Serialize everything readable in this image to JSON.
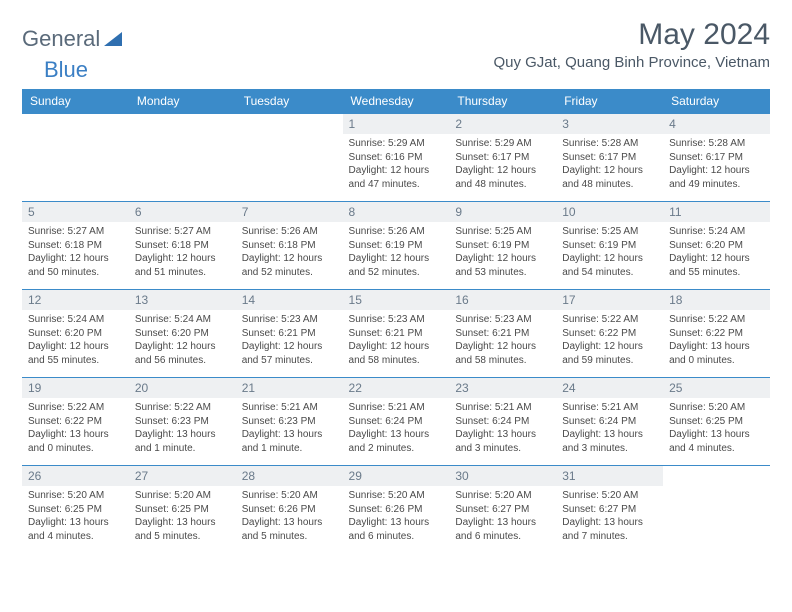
{
  "logo": {
    "text1": "General",
    "text2": "Blue"
  },
  "title": "May 2024",
  "location": "Quy GJat, Quang Binh Province, Vietnam",
  "colors": {
    "header_bg": "#3b8bc9",
    "header_text": "#ffffff",
    "border": "#3b8bc9",
    "daynum_bg": "#eef0f2"
  },
  "weekdays": [
    "Sunday",
    "Monday",
    "Tuesday",
    "Wednesday",
    "Thursday",
    "Friday",
    "Saturday"
  ],
  "weeks": [
    [
      null,
      null,
      null,
      {
        "d": "1",
        "sr": "Sunrise: 5:29 AM",
        "ss": "Sunset: 6:16 PM",
        "dl": "Daylight: 12 hours and 47 minutes."
      },
      {
        "d": "2",
        "sr": "Sunrise: 5:29 AM",
        "ss": "Sunset: 6:17 PM",
        "dl": "Daylight: 12 hours and 48 minutes."
      },
      {
        "d": "3",
        "sr": "Sunrise: 5:28 AM",
        "ss": "Sunset: 6:17 PM",
        "dl": "Daylight: 12 hours and 48 minutes."
      },
      {
        "d": "4",
        "sr": "Sunrise: 5:28 AM",
        "ss": "Sunset: 6:17 PM",
        "dl": "Daylight: 12 hours and 49 minutes."
      }
    ],
    [
      {
        "d": "5",
        "sr": "Sunrise: 5:27 AM",
        "ss": "Sunset: 6:18 PM",
        "dl": "Daylight: 12 hours and 50 minutes."
      },
      {
        "d": "6",
        "sr": "Sunrise: 5:27 AM",
        "ss": "Sunset: 6:18 PM",
        "dl": "Daylight: 12 hours and 51 minutes."
      },
      {
        "d": "7",
        "sr": "Sunrise: 5:26 AM",
        "ss": "Sunset: 6:18 PM",
        "dl": "Daylight: 12 hours and 52 minutes."
      },
      {
        "d": "8",
        "sr": "Sunrise: 5:26 AM",
        "ss": "Sunset: 6:19 PM",
        "dl": "Daylight: 12 hours and 52 minutes."
      },
      {
        "d": "9",
        "sr": "Sunrise: 5:25 AM",
        "ss": "Sunset: 6:19 PM",
        "dl": "Daylight: 12 hours and 53 minutes."
      },
      {
        "d": "10",
        "sr": "Sunrise: 5:25 AM",
        "ss": "Sunset: 6:19 PM",
        "dl": "Daylight: 12 hours and 54 minutes."
      },
      {
        "d": "11",
        "sr": "Sunrise: 5:24 AM",
        "ss": "Sunset: 6:20 PM",
        "dl": "Daylight: 12 hours and 55 minutes."
      }
    ],
    [
      {
        "d": "12",
        "sr": "Sunrise: 5:24 AM",
        "ss": "Sunset: 6:20 PM",
        "dl": "Daylight: 12 hours and 55 minutes."
      },
      {
        "d": "13",
        "sr": "Sunrise: 5:24 AM",
        "ss": "Sunset: 6:20 PM",
        "dl": "Daylight: 12 hours and 56 minutes."
      },
      {
        "d": "14",
        "sr": "Sunrise: 5:23 AM",
        "ss": "Sunset: 6:21 PM",
        "dl": "Daylight: 12 hours and 57 minutes."
      },
      {
        "d": "15",
        "sr": "Sunrise: 5:23 AM",
        "ss": "Sunset: 6:21 PM",
        "dl": "Daylight: 12 hours and 58 minutes."
      },
      {
        "d": "16",
        "sr": "Sunrise: 5:23 AM",
        "ss": "Sunset: 6:21 PM",
        "dl": "Daylight: 12 hours and 58 minutes."
      },
      {
        "d": "17",
        "sr": "Sunrise: 5:22 AM",
        "ss": "Sunset: 6:22 PM",
        "dl": "Daylight: 12 hours and 59 minutes."
      },
      {
        "d": "18",
        "sr": "Sunrise: 5:22 AM",
        "ss": "Sunset: 6:22 PM",
        "dl": "Daylight: 13 hours and 0 minutes."
      }
    ],
    [
      {
        "d": "19",
        "sr": "Sunrise: 5:22 AM",
        "ss": "Sunset: 6:22 PM",
        "dl": "Daylight: 13 hours and 0 minutes."
      },
      {
        "d": "20",
        "sr": "Sunrise: 5:22 AM",
        "ss": "Sunset: 6:23 PM",
        "dl": "Daylight: 13 hours and 1 minute."
      },
      {
        "d": "21",
        "sr": "Sunrise: 5:21 AM",
        "ss": "Sunset: 6:23 PM",
        "dl": "Daylight: 13 hours and 1 minute."
      },
      {
        "d": "22",
        "sr": "Sunrise: 5:21 AM",
        "ss": "Sunset: 6:24 PM",
        "dl": "Daylight: 13 hours and 2 minutes."
      },
      {
        "d": "23",
        "sr": "Sunrise: 5:21 AM",
        "ss": "Sunset: 6:24 PM",
        "dl": "Daylight: 13 hours and 3 minutes."
      },
      {
        "d": "24",
        "sr": "Sunrise: 5:21 AM",
        "ss": "Sunset: 6:24 PM",
        "dl": "Daylight: 13 hours and 3 minutes."
      },
      {
        "d": "25",
        "sr": "Sunrise: 5:20 AM",
        "ss": "Sunset: 6:25 PM",
        "dl": "Daylight: 13 hours and 4 minutes."
      }
    ],
    [
      {
        "d": "26",
        "sr": "Sunrise: 5:20 AM",
        "ss": "Sunset: 6:25 PM",
        "dl": "Daylight: 13 hours and 4 minutes."
      },
      {
        "d": "27",
        "sr": "Sunrise: 5:20 AM",
        "ss": "Sunset: 6:25 PM",
        "dl": "Daylight: 13 hours and 5 minutes."
      },
      {
        "d": "28",
        "sr": "Sunrise: 5:20 AM",
        "ss": "Sunset: 6:26 PM",
        "dl": "Daylight: 13 hours and 5 minutes."
      },
      {
        "d": "29",
        "sr": "Sunrise: 5:20 AM",
        "ss": "Sunset: 6:26 PM",
        "dl": "Daylight: 13 hours and 6 minutes."
      },
      {
        "d": "30",
        "sr": "Sunrise: 5:20 AM",
        "ss": "Sunset: 6:27 PM",
        "dl": "Daylight: 13 hours and 6 minutes."
      },
      {
        "d": "31",
        "sr": "Sunrise: 5:20 AM",
        "ss": "Sunset: 6:27 PM",
        "dl": "Daylight: 13 hours and 7 minutes."
      },
      null
    ]
  ]
}
